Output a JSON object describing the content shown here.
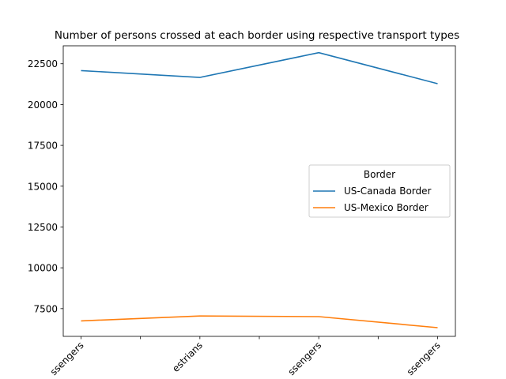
{
  "chart_data": {
    "type": "line",
    "title": "Number of persons crossed at each border using respective transport types",
    "xlabel": "",
    "ylabel": "",
    "categories": [
      "Bus Passengers",
      "Pedestrians",
      "Personal Vehicle Passengers",
      "Train Passengers"
    ],
    "x_tick_labels_visible": [
      "ssengers",
      "estrians",
      "ssengers",
      "ssengers"
    ],
    "x_tick_rotation_deg": 45,
    "ylim": [
      5800,
      23600
    ],
    "yticks": [
      7500,
      10000,
      12500,
      15000,
      17500,
      20000,
      22500
    ],
    "ytick_labels": [
      "7500",
      "10000",
      "12500",
      "15000",
      "17500",
      "20000",
      "22500"
    ],
    "grid": false,
    "legend": {
      "title": "Border",
      "placement": "center-right"
    },
    "series": [
      {
        "name": "US-Canada Border",
        "color": "#1f77b4",
        "values": [
          22080,
          21660,
          23180,
          21280
        ]
      },
      {
        "name": "US-Mexico Border",
        "color": "#ff7f0e",
        "values": [
          6750,
          7050,
          7010,
          6330
        ]
      }
    ]
  }
}
